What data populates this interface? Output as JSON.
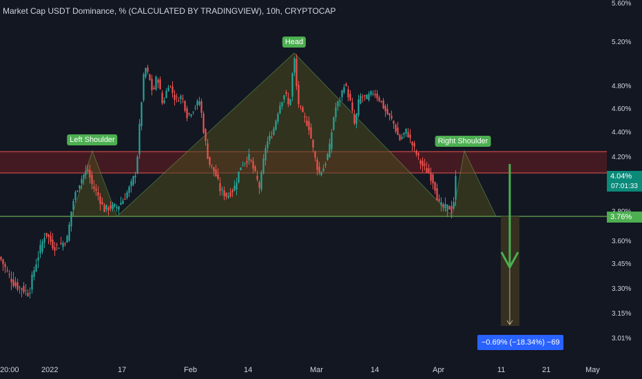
{
  "header": {
    "title": "Market Cap USDT Dominance, % (CALCULATED BY TRADINGVIEW), 10h, CRYPTOCAP"
  },
  "price_scale": {
    "last_price": "4.04%",
    "countdown": "07:01:33",
    "neckline_price": "3.76%"
  },
  "pattern": {
    "left_shoulder": "Left Shoulder",
    "head": "Head",
    "right_shoulder": "Right Shoulder",
    "projection": "−0.69% (−18.34%) −69"
  },
  "colors": {
    "background": "#131722",
    "up": "#26a69a",
    "down": "#ef5350",
    "pattern_line": "#6aa84f",
    "pattern_fill": "#3a3a1e",
    "resistance_zone": "#4a1b22",
    "label_green": "#4caf50",
    "measure_blue": "#2962ff"
  },
  "chart_data": {
    "type": "candlestick",
    "title": "Market Cap USDT Dominance, % (CALCULATED BY TRADINGVIEW), 10h, CRYPTOCAP",
    "y_axis": {
      "labels": [
        "5.60%",
        "5.20%",
        "4.80%",
        "4.60%",
        "4.40%",
        "4.20%",
        "4.04%",
        "3.80%",
        "3.76%",
        "3.60%",
        "3.45%",
        "3.30%",
        "3.15%",
        "3.01%"
      ],
      "range": [
        2.95,
        5.62
      ],
      "scale": "log"
    },
    "x_axis": {
      "labels": [
        "20:00",
        "2022",
        "17",
        "Feb",
        "14",
        "Mar",
        "14",
        "Apr",
        "11",
        "21",
        "May"
      ]
    },
    "anchors": [
      {
        "x": 0,
        "y": 3.45
      },
      {
        "x": 12,
        "y": 3.34
      },
      {
        "x": 22,
        "y": 3.27
      },
      {
        "x": 32,
        "y": 3.25
      },
      {
        "x": 42,
        "y": 3.22
      },
      {
        "x": 50,
        "y": 3.38
      },
      {
        "x": 58,
        "y": 3.5
      },
      {
        "x": 66,
        "y": 3.62
      },
      {
        "x": 78,
        "y": 3.52
      },
      {
        "x": 90,
        "y": 3.54
      },
      {
        "x": 98,
        "y": 3.58
      },
      {
        "x": 105,
        "y": 3.82
      },
      {
        "x": 112,
        "y": 3.94
      },
      {
        "x": 120,
        "y": 4.03
      },
      {
        "x": 127,
        "y": 4.08
      },
      {
        "x": 134,
        "y": 3.96
      },
      {
        "x": 143,
        "y": 3.88
      },
      {
        "x": 151,
        "y": 3.78
      },
      {
        "x": 160,
        "y": 3.8
      },
      {
        "x": 170,
        "y": 3.8
      },
      {
        "x": 180,
        "y": 3.86
      },
      {
        "x": 190,
        "y": 3.96
      },
      {
        "x": 198,
        "y": 4.08
      },
      {
        "x": 204,
        "y": 4.55
      },
      {
        "x": 210,
        "y": 4.98
      },
      {
        "x": 216,
        "y": 4.88
      },
      {
        "x": 222,
        "y": 4.72
      },
      {
        "x": 228,
        "y": 4.9
      },
      {
        "x": 236,
        "y": 4.62
      },
      {
        "x": 245,
        "y": 4.82
      },
      {
        "x": 255,
        "y": 4.66
      },
      {
        "x": 264,
        "y": 4.7
      },
      {
        "x": 272,
        "y": 4.52
      },
      {
        "x": 280,
        "y": 4.58
      },
      {
        "x": 290,
        "y": 4.66
      },
      {
        "x": 296,
        "y": 4.38
      },
      {
        "x": 303,
        "y": 4.14
      },
      {
        "x": 312,
        "y": 4.06
      },
      {
        "x": 320,
        "y": 3.92
      },
      {
        "x": 330,
        "y": 3.88
      },
      {
        "x": 340,
        "y": 3.94
      },
      {
        "x": 350,
        "y": 4.12
      },
      {
        "x": 362,
        "y": 4.18
      },
      {
        "x": 370,
        "y": 4.05
      },
      {
        "x": 377,
        "y": 3.94
      },
      {
        "x": 386,
        "y": 4.28
      },
      {
        "x": 396,
        "y": 4.38
      },
      {
        "x": 405,
        "y": 4.6
      },
      {
        "x": 414,
        "y": 4.74
      },
      {
        "x": 420,
        "y": 4.58
      },
      {
        "x": 427,
        "y": 5.08
      },
      {
        "x": 432,
        "y": 4.66
      },
      {
        "x": 440,
        "y": 4.52
      },
      {
        "x": 448,
        "y": 4.44
      },
      {
        "x": 456,
        "y": 4.2
      },
      {
        "x": 463,
        "y": 4.05
      },
      {
        "x": 470,
        "y": 4.1
      },
      {
        "x": 478,
        "y": 4.24
      },
      {
        "x": 486,
        "y": 4.58
      },
      {
        "x": 494,
        "y": 4.68
      },
      {
        "x": 500,
        "y": 4.82
      },
      {
        "x": 508,
        "y": 4.66
      },
      {
        "x": 515,
        "y": 4.44
      },
      {
        "x": 522,
        "y": 4.7
      },
      {
        "x": 532,
        "y": 4.68
      },
      {
        "x": 542,
        "y": 4.74
      },
      {
        "x": 552,
        "y": 4.66
      },
      {
        "x": 560,
        "y": 4.56
      },
      {
        "x": 570,
        "y": 4.48
      },
      {
        "x": 580,
        "y": 4.32
      },
      {
        "x": 590,
        "y": 4.4
      },
      {
        "x": 600,
        "y": 4.26
      },
      {
        "x": 612,
        "y": 4.12
      },
      {
        "x": 622,
        "y": 4.06
      },
      {
        "x": 630,
        "y": 3.98
      },
      {
        "x": 637,
        "y": 3.82
      },
      {
        "x": 645,
        "y": 3.79
      },
      {
        "x": 652,
        "y": 3.8
      },
      {
        "x": 657,
        "y": 3.76
      },
      {
        "x": 662,
        "y": 4.04
      }
    ]
  }
}
